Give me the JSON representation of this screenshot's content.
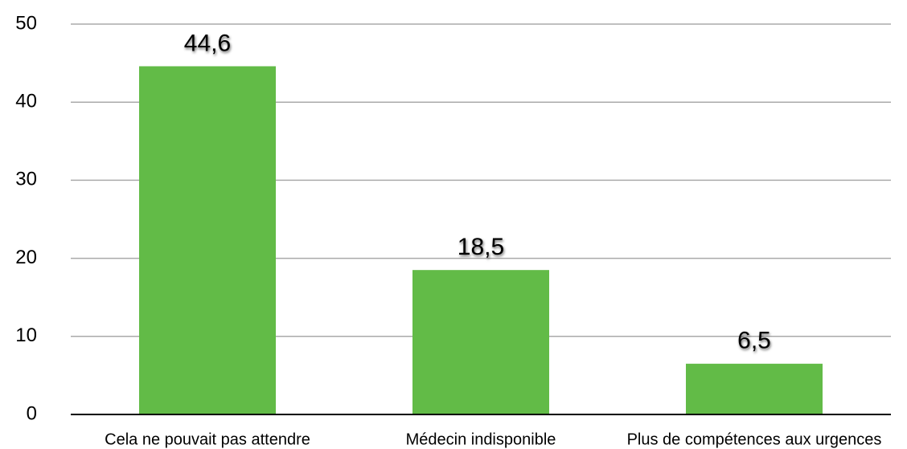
{
  "chart_data": {
    "type": "bar",
    "categories": [
      "Cela ne pouvait pas attendre",
      "Médecin indisponible",
      "Plus de compétences aux urgences"
    ],
    "values": [
      44.6,
      18.5,
      6.5
    ],
    "value_labels": [
      "44,6",
      "18,5",
      "6,5"
    ],
    "color": "#62bb47",
    "ylim": [
      0,
      50
    ],
    "yticks": [
      0,
      10,
      20,
      30,
      40,
      50
    ],
    "grid": true
  }
}
